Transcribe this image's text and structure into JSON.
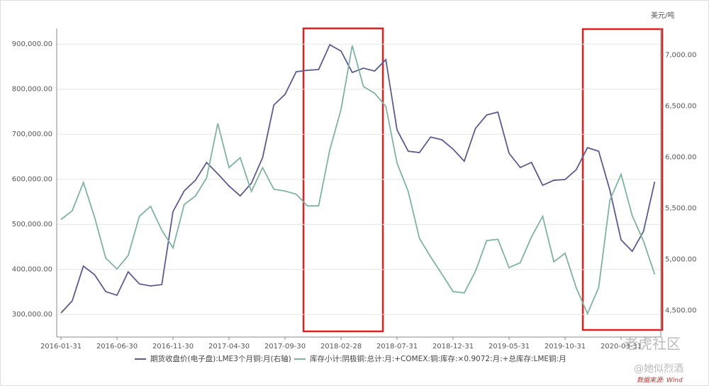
{
  "chart_data": {
    "type": "line",
    "categories": [
      "2016-01-31",
      null,
      null,
      null,
      null,
      "2016-06-30",
      null,
      null,
      null,
      null,
      "2016-11-30",
      null,
      null,
      null,
      null,
      "2017-04-30",
      null,
      null,
      null,
      null,
      "2017-09-30",
      null,
      null,
      null,
      null,
      "2018-02-28",
      null,
      null,
      null,
      null,
      "2018-07-31",
      null,
      null,
      null,
      null,
      "2018-12-31",
      null,
      null,
      null,
      null,
      "2019-05-31",
      null,
      null,
      null,
      null,
      "2019-10-31",
      null,
      null,
      null,
      null,
      "2020-03-31",
      null,
      null,
      null
    ],
    "series": [
      {
        "name": "期货收盘价(电子盘):LME3个月铜:月(右轴)",
        "color": "#5b5b8f",
        "axis": "y2",
        "values": [
          4475,
          4593,
          4934,
          4850,
          4684,
          4649,
          4878,
          4760,
          4740,
          4753,
          5468,
          5670,
          5774,
          5948,
          5837,
          5718,
          5621,
          5746,
          5996,
          6510,
          6614,
          6836,
          6850,
          6857,
          7100,
          7038,
          6829,
          6871,
          6843,
          6954,
          6267,
          6058,
          6045,
          6197,
          6170,
          6079,
          5961,
          6281,
          6413,
          6441,
          6038,
          5899,
          5948,
          5725,
          5774,
          5781,
          5878,
          6093,
          6058,
          5677,
          5190,
          5079,
          5274,
          5760
        ]
      },
      {
        "name": "库存小计:阴极铜:总计:月:+COMEX:铜:库存:×0.9072:月:+总库存:LME铜:月",
        "color": "#7fb3a0",
        "values": [
          511000,
          530000,
          593000,
          516000,
          425000,
          401000,
          431000,
          518000,
          540000,
          487000,
          448000,
          544000,
          563000,
          603000,
          724000,
          626000,
          648000,
          573000,
          626000,
          578000,
          574000,
          567000,
          541000,
          541000,
          666000,
          755000,
          897000,
          806000,
          791000,
          762000,
          636000,
          573000,
          469000,
          428000,
          390000,
          351000,
          348000,
          396000,
          464000,
          467000,
          404000,
          415000,
          472000,
          518000,
          417000,
          436000,
          359000,
          302000,
          360000,
          554000,
          611000,
          519000,
          463000,
          389000
        ]
      }
    ],
    "ylim": [
      250000,
      935000
    ],
    "yticks": [
      {
        "value": 300000,
        "label": "300,000.00"
      },
      {
        "value": 400000,
        "label": "400,000.00"
      },
      {
        "value": 500000,
        "label": "500,000.00"
      },
      {
        "value": 600000,
        "label": "600,000.00"
      },
      {
        "value": 700000,
        "label": "700,000.00"
      },
      {
        "value": 800000,
        "label": "800,000.00"
      },
      {
        "value": 900000,
        "label": "900,000.00"
      }
    ],
    "y2lim": [
      4240,
      7260
    ],
    "y2ticks": [
      {
        "value": 4500,
        "label": "4,500.00"
      },
      {
        "value": 5000,
        "label": "5,000.00"
      },
      {
        "value": 5500,
        "label": "5,500.00"
      },
      {
        "value": 6000,
        "label": "6,000.00"
      },
      {
        "value": 6500,
        "label": "6,500.00"
      },
      {
        "value": 7000,
        "label": "7,000.00"
      }
    ],
    "y2_unit": "美元/吨",
    "grid": true,
    "watermark": "老虎社区",
    "author": "@她似烈酒",
    "source": "数据来源: Wind"
  }
}
